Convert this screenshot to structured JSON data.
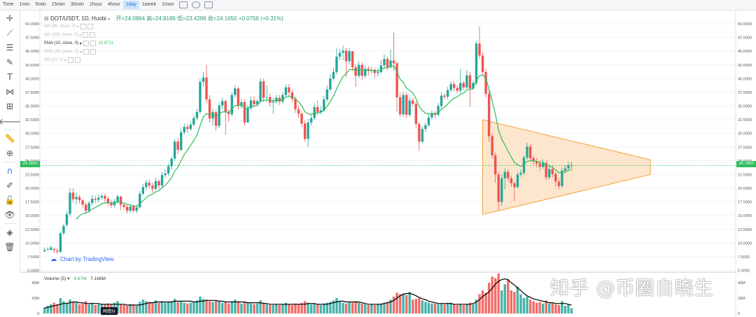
{
  "toolbar": {
    "timeframes": [
      "Time",
      "1min",
      "5min",
      "15min",
      "30min",
      "1hour",
      "4hour",
      "1day",
      "1week",
      "1mon"
    ],
    "active_timeframe": "1day",
    "icons": [
      "indicators-icon",
      "settings-icon",
      "fullscreen-icon"
    ]
  },
  "legend": {
    "symbol": "DOT/USDT, 1D, Huobi",
    "ohlc": "开=24.0894  高=24.8186  低=23.4286  收=24.1650  +0.0756 (+0.31%)"
  },
  "indicators": [
    {
      "label": "MA (30, close, 0)",
      "active": false,
      "value": ""
    },
    {
      "label": "MA (200, close, 0)",
      "active": false,
      "value": ""
    },
    {
      "label": "EMA (10, close, 0)",
      "active": true,
      "value": "22.9711"
    },
    {
      "label": "EMA (30, close, 0)",
      "active": false,
      "value": ""
    },
    {
      "label": "BB (20, 2)",
      "active": false,
      "value": ""
    }
  ],
  "branding": {
    "text": "Chart by TradingView"
  },
  "volume_legend": {
    "label": "Volume (5)",
    "v1": "4.67M",
    "v2": "7.166M"
  },
  "time_tag": "時間分",
  "watermark": "知乎 @币圈自晓生",
  "price_label": "24.1650",
  "colors": {
    "up": "#26a69a",
    "down": "#ef5350",
    "ema": "#2ebd5b",
    "triangle_fill": "#fbe0c0",
    "triangle_line": "#f5a53a"
  },
  "chart_data": {
    "type": "candlestick",
    "title": "DOT/USDT, 1D, Huobi",
    "y_ticks": [
      "5.0000",
      "7.5000",
      "10.0000",
      "12.5000",
      "15.0000",
      "17.5000",
      "20.0000",
      "22.5000",
      "25.0000",
      "27.5000",
      "30.0000",
      "32.5000",
      "35.0000",
      "37.5000",
      "40.0000",
      "42.5000",
      "45.0000",
      "47.5000",
      "50.0000"
    ],
    "ylim": [
      5,
      50
    ],
    "volume_ticks": [
      "40M",
      "20M",
      "0"
    ],
    "volume_ylim": [
      0,
      50
    ],
    "ohlc": [
      [
        8.5,
        8.7,
        8.3,
        9.2
      ],
      [
        8.8,
        8.9,
        8.6,
        9.2
      ],
      [
        8.8,
        9.2,
        8.6,
        9.5
      ],
      [
        8.9,
        8.7,
        8.2,
        9.2
      ],
      [
        8.6,
        8.4,
        8.0,
        9.0
      ],
      [
        8.4,
        11.8,
        8.2,
        12.1
      ],
      [
        11.8,
        13.1,
        11.4,
        13.5
      ],
      [
        13.3,
        15.3,
        13.0,
        15.8
      ],
      [
        15.3,
        19.2,
        14.8,
        20.0
      ],
      [
        19.2,
        18.0,
        17.4,
        20.0
      ],
      [
        18.0,
        18.4,
        17.0,
        19.2
      ],
      [
        18.4,
        17.8,
        17.2,
        18.8
      ],
      [
        17.8,
        17.0,
        16.4,
        18.0
      ],
      [
        17.0,
        15.9,
        15.3,
        17.4
      ],
      [
        15.9,
        17.3,
        15.5,
        17.7
      ],
      [
        17.3,
        18.1,
        16.8,
        18.8
      ],
      [
        18.1,
        17.9,
        17.3,
        18.6
      ],
      [
        17.9,
        18.3,
        17.4,
        18.9
      ],
      [
        18.3,
        18.6,
        17.9,
        19.0
      ],
      [
        18.6,
        18.1,
        17.5,
        19.0
      ],
      [
        18.1,
        17.4,
        16.8,
        18.5
      ],
      [
        17.4,
        16.9,
        16.4,
        17.8
      ],
      [
        16.9,
        17.6,
        16.5,
        18.0
      ],
      [
        17.6,
        18.5,
        17.2,
        18.9
      ],
      [
        18.5,
        17.0,
        16.0,
        18.6
      ],
      [
        17.0,
        16.6,
        16.2,
        17.3
      ],
      [
        16.6,
        15.9,
        15.4,
        17.0
      ],
      [
        15.9,
        16.7,
        15.5,
        17.1
      ],
      [
        16.7,
        15.9,
        15.5,
        17.0
      ],
      [
        15.9,
        16.5,
        15.4,
        17.0
      ],
      [
        16.5,
        19.0,
        16.2,
        19.5
      ],
      [
        19.0,
        20.2,
        18.8,
        20.8
      ],
      [
        20.2,
        21.0,
        19.6,
        21.5
      ],
      [
        21.0,
        20.5,
        19.9,
        21.6
      ],
      [
        20.5,
        19.9,
        19.2,
        21.0
      ],
      [
        19.9,
        21.3,
        19.6,
        21.9
      ],
      [
        21.3,
        20.5,
        19.8,
        21.6
      ],
      [
        20.5,
        22.4,
        20.1,
        23.0
      ],
      [
        22.4,
        22.7,
        22.0,
        23.4
      ],
      [
        22.7,
        24.0,
        22.3,
        24.5
      ],
      [
        24.0,
        25.4,
        23.4,
        25.8
      ],
      [
        25.4,
        28.5,
        25.0,
        29.0
      ],
      [
        28.5,
        27.0,
        26.2,
        29.2
      ],
      [
        27.0,
        30.2,
        26.8,
        30.9
      ],
      [
        30.2,
        31.2,
        29.8,
        31.8
      ],
      [
        31.2,
        30.8,
        30.1,
        31.8
      ],
      [
        30.8,
        31.6,
        30.4,
        32.1
      ],
      [
        31.6,
        32.8,
        31.2,
        33.3
      ],
      [
        32.8,
        33.9,
        32.4,
        34.5
      ],
      [
        33.9,
        39.4,
        33.6,
        40.0
      ],
      [
        39.4,
        40.2,
        38.5,
        41.2
      ],
      [
        40.2,
        36.2,
        35.6,
        42.5
      ],
      [
        36.2,
        32.7,
        32.0,
        37.0
      ],
      [
        32.7,
        33.9,
        31.5,
        34.5
      ],
      [
        33.9,
        31.4,
        30.5,
        34.2
      ],
      [
        31.4,
        35.1,
        31.0,
        35.6
      ],
      [
        35.1,
        35.9,
        34.4,
        36.5
      ],
      [
        35.9,
        33.9,
        29.8,
        36.2
      ],
      [
        33.9,
        33.5,
        32.1,
        34.3
      ],
      [
        33.5,
        37.0,
        33.1,
        37.5
      ],
      [
        37.0,
        38.2,
        36.5,
        38.8
      ],
      [
        38.2,
        35.0,
        34.4,
        38.5
      ],
      [
        35.0,
        35.7,
        34.5,
        36.3
      ],
      [
        35.7,
        32.0,
        31.4,
        36.2
      ],
      [
        32.0,
        34.6,
        31.9,
        35.2
      ],
      [
        34.6,
        36.0,
        34.2,
        36.8
      ],
      [
        36.0,
        35.3,
        34.8,
        36.8
      ],
      [
        35.3,
        35.9,
        35.0,
        36.2
      ],
      [
        35.9,
        39.5,
        35.5,
        40.1
      ],
      [
        39.5,
        36.5,
        35.8,
        40.0
      ],
      [
        36.5,
        36.6,
        35.8,
        38.8
      ],
      [
        36.6,
        35.6,
        34.9,
        37.2
      ],
      [
        35.6,
        35.8,
        33.6,
        36.5
      ],
      [
        35.8,
        36.5,
        35.4,
        37.0
      ],
      [
        36.5,
        35.8,
        35.2,
        37.0
      ],
      [
        35.8,
        37.0,
        35.4,
        37.5
      ],
      [
        37.0,
        38.4,
        36.6,
        39.0
      ],
      [
        38.4,
        37.5,
        36.8,
        39.0
      ],
      [
        37.5,
        36.3,
        35.7,
        38.0
      ],
      [
        36.3,
        34.4,
        33.7,
        36.8
      ],
      [
        34.4,
        33.6,
        32.8,
        35.1
      ],
      [
        33.6,
        31.8,
        31.1,
        34.1
      ],
      [
        31.8,
        29.0,
        28.5,
        32.4
      ],
      [
        29.0,
        32.0,
        27.5,
        32.6
      ],
      [
        32.0,
        32.8,
        31.4,
        33.4
      ],
      [
        32.8,
        34.8,
        32.4,
        35.5
      ],
      [
        34.8,
        33.9,
        33.4,
        36.0
      ],
      [
        33.9,
        34.2,
        33.5,
        35.0
      ],
      [
        34.2,
        36.2,
        33.9,
        36.9
      ],
      [
        36.2,
        38.0,
        35.8,
        38.7
      ],
      [
        38.0,
        40.0,
        37.6,
        40.8
      ],
      [
        40.0,
        41.2,
        39.6,
        42.0
      ],
      [
        41.2,
        44.0,
        40.8,
        45.5
      ],
      [
        44.0,
        44.7,
        43.4,
        45.4
      ],
      [
        44.7,
        45.1,
        43.4,
        46.0
      ],
      [
        45.1,
        43.2,
        40.2,
        45.6
      ],
      [
        43.2,
        45.0,
        42.6,
        45.6
      ],
      [
        45.0,
        42.1,
        41.4,
        45.0
      ],
      [
        42.1,
        40.5,
        38.5,
        42.6
      ],
      [
        40.5,
        42.5,
        40.1,
        43.2
      ],
      [
        42.5,
        40.5,
        39.8,
        43.0
      ],
      [
        40.5,
        41.8,
        40.2,
        42.4
      ],
      [
        41.8,
        41.4,
        40.6,
        42.3
      ],
      [
        41.4,
        41.6,
        40.9,
        42.2
      ],
      [
        41.6,
        41.0,
        40.1,
        41.9
      ],
      [
        41.0,
        41.2,
        40.4,
        42.0
      ],
      [
        41.2,
        42.4,
        40.9,
        43.4
      ],
      [
        42.4,
        43.6,
        42.0,
        44.4
      ],
      [
        43.6,
        42.1,
        41.5,
        44.0
      ],
      [
        42.1,
        43.3,
        41.8,
        45.3
      ],
      [
        43.3,
        42.8,
        41.4,
        48.4
      ],
      [
        42.8,
        36.6,
        34.0,
        43.0
      ],
      [
        36.6,
        33.5,
        33.0,
        37.4
      ],
      [
        33.5,
        37.0,
        33.0,
        37.6
      ],
      [
        37.0,
        33.4,
        32.8,
        37.5
      ],
      [
        33.4,
        36.0,
        33.0,
        36.6
      ],
      [
        36.0,
        35.4,
        34.8,
        36.5
      ],
      [
        35.4,
        31.7,
        31.0,
        35.8
      ],
      [
        31.7,
        28.5,
        26.8,
        32.1
      ],
      [
        28.5,
        30.8,
        28.2,
        31.3
      ],
      [
        30.8,
        31.5,
        30.3,
        32.0
      ],
      [
        31.5,
        32.9,
        31.2,
        33.5
      ],
      [
        32.9,
        33.7,
        32.5,
        34.2
      ],
      [
        33.7,
        33.4,
        32.8,
        34.1
      ],
      [
        33.4,
        35.0,
        33.1,
        35.6
      ],
      [
        35.0,
        36.9,
        34.6,
        37.5
      ],
      [
        36.9,
        36.7,
        36.2,
        37.3
      ],
      [
        36.7,
        37.9,
        36.2,
        38.5
      ],
      [
        37.9,
        39.0,
        37.5,
        39.5
      ],
      [
        39.0,
        38.3,
        37.7,
        39.5
      ],
      [
        38.3,
        37.8,
        37.4,
        38.8
      ],
      [
        37.8,
        39.2,
        37.4,
        41.8
      ],
      [
        39.2,
        38.4,
        37.9,
        39.6
      ],
      [
        38.4,
        40.6,
        38.1,
        41.5
      ],
      [
        40.6,
        38.2,
        34.8,
        41.2
      ],
      [
        38.2,
        39.2,
        37.9,
        39.7
      ],
      [
        39.2,
        46.4,
        38.9,
        46.8
      ],
      [
        46.4,
        44.2,
        43.6,
        49.5
      ],
      [
        44.2,
        41.2,
        40.5,
        44.8
      ],
      [
        41.2,
        37.2,
        36.5,
        41.8
      ],
      [
        37.2,
        29.5,
        28.5,
        38.0
      ],
      [
        29.5,
        26.0,
        25.5,
        30.0
      ],
      [
        26.0,
        22.5,
        21.0,
        26.5
      ],
      [
        22.5,
        17.5,
        16.0,
        23.0
      ],
      [
        17.5,
        21.8,
        16.8,
        22.5
      ],
      [
        21.8,
        23.0,
        19.8,
        23.6
      ],
      [
        23.0,
        21.8,
        21.2,
        23.5
      ],
      [
        21.8,
        20.9,
        20.2,
        22.3
      ],
      [
        20.9,
        20.2,
        17.6,
        21.2
      ],
      [
        20.2,
        22.5,
        20.0,
        23.0
      ],
      [
        22.5,
        22.8,
        22.1,
        23.4
      ],
      [
        22.8,
        25.6,
        22.4,
        26.0
      ],
      [
        25.6,
        27.6,
        25.2,
        28.3
      ],
      [
        27.6,
        25.5,
        24.9,
        28.0
      ],
      [
        25.5,
        24.9,
        24.3,
        26.0
      ],
      [
        24.9,
        24.5,
        23.8,
        25.5
      ],
      [
        24.5,
        23.9,
        23.2,
        25.0
      ],
      [
        23.9,
        24.6,
        23.5,
        25.3
      ],
      [
        24.6,
        22.0,
        21.5,
        25.0
      ],
      [
        22.0,
        23.5,
        21.6,
        24.0
      ],
      [
        23.5,
        22.6,
        22.0,
        24.1
      ],
      [
        22.6,
        21.2,
        20.3,
        23.0
      ],
      [
        21.2,
        20.4,
        19.8,
        21.8
      ],
      [
        20.4,
        23.2,
        20.1,
        23.8
      ],
      [
        23.2,
        23.6,
        22.8,
        24.2
      ],
      [
        23.6,
        24.2,
        23.4,
        24.8
      ],
      [
        24.1,
        24.17,
        23.43,
        24.82
      ]
    ],
    "volume": [
      8,
      10,
      12,
      14,
      12,
      20,
      16,
      14,
      18,
      15,
      14,
      12,
      13,
      16,
      12,
      14,
      11,
      12,
      12,
      12,
      13,
      12,
      14,
      16,
      12,
      11,
      10,
      12,
      11,
      10,
      15,
      18,
      16,
      15,
      14,
      17,
      14,
      16,
      14,
      15,
      16,
      19,
      15,
      16,
      14,
      13,
      14,
      15,
      17,
      22,
      19,
      18,
      16,
      15,
      17,
      16,
      14,
      15,
      13,
      16,
      18,
      16,
      13,
      15,
      14,
      13,
      12,
      13,
      17,
      14,
      12,
      11,
      11,
      12,
      11,
      12,
      14,
      12,
      11,
      13,
      12,
      14,
      16,
      14,
      12,
      13,
      12,
      11,
      13,
      14,
      15,
      17,
      20,
      16,
      14,
      13,
      15,
      14,
      16,
      14,
      13,
      12,
      11,
      12,
      11,
      12,
      13,
      14,
      15,
      18,
      22,
      27,
      25,
      26,
      24,
      28,
      18,
      19,
      20,
      17,
      15,
      14,
      13,
      13,
      12,
      13,
      12,
      14,
      14,
      12,
      11,
      12,
      11,
      12,
      14,
      12,
      18,
      25,
      30,
      27,
      40,
      48,
      46,
      52,
      30,
      38,
      44,
      30,
      28,
      35,
      25,
      20,
      22,
      18,
      16,
      14,
      15,
      13,
      17,
      13,
      14,
      12,
      11,
      16,
      10,
      12,
      7
    ],
    "volume_ma": [
      7,
      8,
      9,
      10,
      11,
      12,
      13,
      13,
      14,
      15,
      15,
      14,
      14,
      13,
      13,
      13,
      13,
      13,
      12,
      12,
      12,
      12,
      12,
      12,
      12,
      12,
      11,
      11,
      11,
      11,
      11,
      12,
      13,
      14,
      14,
      15,
      15,
      15,
      15,
      15,
      15,
      16,
      16,
      16,
      16,
      16,
      16,
      15,
      15,
      16,
      16,
      17,
      17,
      17,
      17,
      16,
      16,
      15,
      15,
      15,
      15,
      15,
      15,
      15,
      14,
      14,
      14,
      14,
      14,
      13,
      13,
      12,
      12,
      12,
      12,
      12,
      12,
      12,
      12,
      12,
      12,
      12,
      12,
      13,
      13,
      13,
      12,
      12,
      12,
      12,
      13,
      14,
      15,
      16,
      16,
      15,
      15,
      15,
      15,
      15,
      14,
      13,
      12,
      12,
      12,
      12,
      12,
      13,
      14,
      15,
      17,
      20,
      23,
      25,
      26,
      26,
      25,
      23,
      21,
      19,
      18,
      16,
      15,
      14,
      13,
      13,
      13,
      13,
      13,
      12,
      12,
      12,
      12,
      12,
      12,
      13,
      15,
      18,
      22,
      25,
      28,
      33,
      38,
      42,
      44,
      45,
      44,
      40,
      37,
      33,
      30,
      26,
      23,
      21,
      19,
      18,
      17,
      16,
      15,
      14,
      14,
      13,
      13,
      13,
      13,
      12,
      11
    ],
    "ema_start_index": 10,
    "triangle": {
      "start_index": 138,
      "end_index": 182,
      "upper": [
        32.5,
        25.2
      ],
      "lower": [
        15.2,
        22.5
      ]
    },
    "last_price": 24.165
  }
}
